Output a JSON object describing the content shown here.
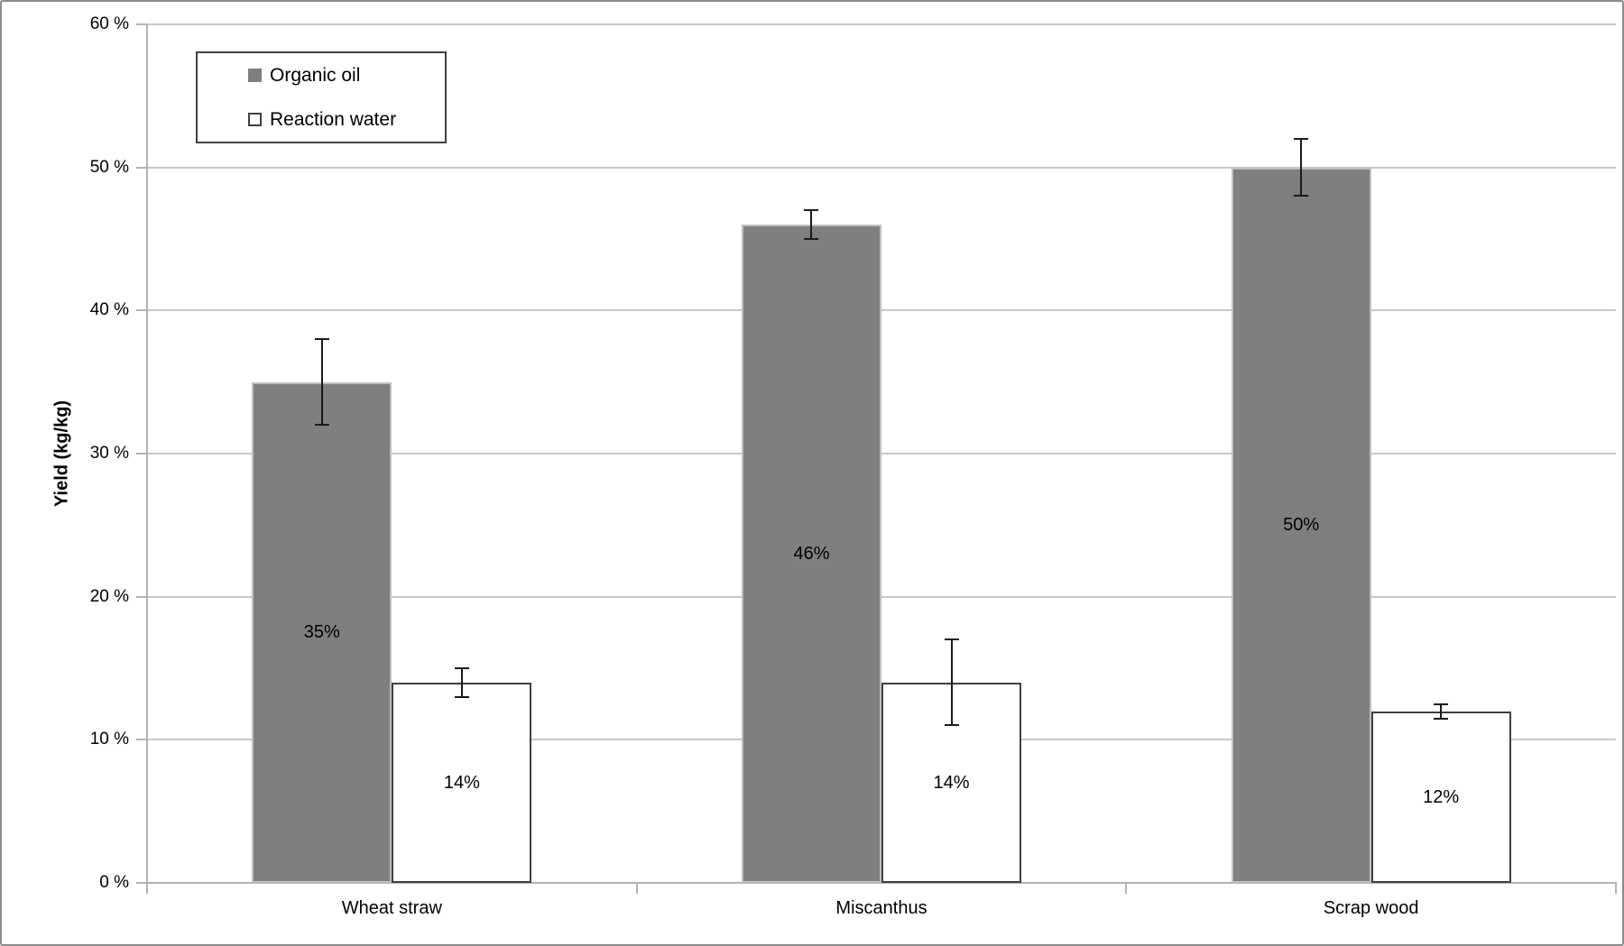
{
  "chart_data": {
    "type": "bar",
    "title": "",
    "xlabel": "",
    "ylabel": "Yield (kg/kg)",
    "categories": [
      "Wheat straw",
      "Miscanthus",
      "Scrap wood"
    ],
    "series": [
      {
        "name": "Organic oil",
        "values": [
          35,
          46,
          50
        ],
        "labels": [
          "35%",
          "46%",
          "50%"
        ],
        "errors": [
          3,
          1,
          2
        ],
        "fill": "#7f7f7f",
        "border": "#bfbfbf"
      },
      {
        "name": "Reaction water",
        "values": [
          14,
          14,
          12
        ],
        "labels": [
          "14%",
          "14%",
          "12%"
        ],
        "errors": [
          1,
          3,
          0.5
        ],
        "fill": "#ffffff",
        "border": "#404040"
      }
    ],
    "y_axis": {
      "min": 0,
      "max": 60,
      "step": 10,
      "tick_labels": [
        "0 %",
        "10 %",
        "20 %",
        "30 %",
        "40 %",
        "50 %",
        "60 %"
      ]
    },
    "legend": {
      "position": "top-left",
      "items": [
        "Organic oil",
        "Reaction water"
      ]
    },
    "grid": true,
    "error_bars": true
  },
  "colors": {
    "gridline": "#c8c8c8",
    "axis_line": "#b3b3b3",
    "error_bar": "#1a1a1a",
    "legend_border": "#404040",
    "frame_border": "#8c8c8c",
    "text": "#000000"
  }
}
